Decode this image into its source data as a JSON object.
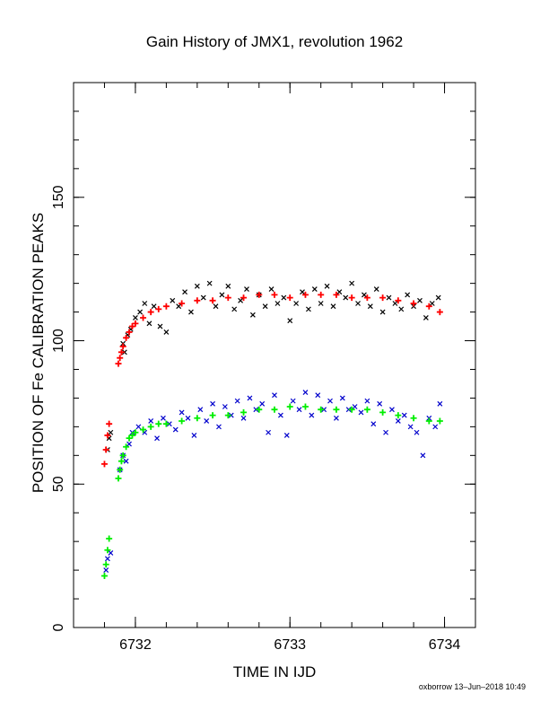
{
  "chart_data": {
    "type": "scatter",
    "title": "Gain History of JMX1, revolution 1962",
    "xlabel": "TIME IN IJD",
    "ylabel": "POSITION OF Fe CALIBRATION PEAKS",
    "xlim": [
      6731.6,
      6734.2
    ],
    "ylim": [
      0,
      190
    ],
    "x_ticks": [
      6732,
      6733,
      6734
    ],
    "x_tick_labels": [
      "6732",
      "6733",
      "6734"
    ],
    "y_ticks": [
      0,
      50,
      100,
      150
    ],
    "y_tick_labels": [
      "0",
      "50",
      "100",
      "150"
    ],
    "grid": false,
    "footer": "oxborrow 13–Jun–2018 10:49",
    "series": [
      {
        "role": "upper-peak measurements",
        "marker": "x",
        "color": "#000000",
        "x": [
          6731.82,
          6731.83,
          6731.84,
          6731.92,
          6731.93,
          6731.95,
          6731.97,
          6732.0,
          6732.03,
          6732.06,
          6732.09,
          6732.12,
          6732.16,
          6732.2,
          6732.24,
          6732.28,
          6732.32,
          6732.36,
          6732.4,
          6732.44,
          6732.48,
          6732.52,
          6732.56,
          6732.6,
          6732.64,
          6732.68,
          6732.72,
          6732.76,
          6732.8,
          6732.84,
          6732.88,
          6732.92,
          6732.96,
          6733.0,
          6733.04,
          6733.08,
          6733.12,
          6733.16,
          6733.2,
          6733.24,
          6733.28,
          6733.32,
          6733.36,
          6733.4,
          6733.44,
          6733.48,
          6733.52,
          6733.56,
          6733.6,
          6733.64,
          6733.68,
          6733.72,
          6733.76,
          6733.8,
          6733.84,
          6733.88,
          6733.92,
          6733.96
        ],
        "y": [
          62,
          66,
          68,
          99,
          96,
          102,
          104,
          108,
          110,
          113,
          106,
          112,
          105,
          103,
          114,
          112,
          117,
          110,
          119,
          115,
          120,
          112,
          116,
          119,
          111,
          114,
          118,
          109,
          116,
          112,
          118,
          113,
          115,
          107,
          113,
          117,
          111,
          118,
          113,
          119,
          112,
          117,
          115,
          120,
          113,
          116,
          112,
          118,
          110,
          115,
          113,
          111,
          116,
          112,
          114,
          108,
          113,
          115
        ]
      },
      {
        "role": "upper-peak fit",
        "marker": "+",
        "color": "#ff0000",
        "x": [
          6731.8,
          6731.81,
          6731.82,
          6731.83,
          6731.89,
          6731.9,
          6731.91,
          6731.92,
          6731.94,
          6731.96,
          6731.98,
          6732.0,
          6732.05,
          6732.1,
          6732.15,
          6732.2,
          6732.3,
          6732.4,
          6732.5,
          6732.6,
          6732.7,
          6732.8,
          6732.9,
          6733.0,
          6733.1,
          6733.2,
          6733.3,
          6733.4,
          6733.5,
          6733.6,
          6733.7,
          6733.8,
          6733.9,
          6733.97
        ],
        "y": [
          57,
          62,
          67,
          71,
          92,
          94,
          96,
          98,
          101,
          103,
          105,
          106,
          108,
          110,
          111,
          112,
          113,
          114,
          114,
          115,
          115,
          116,
          116,
          115,
          116,
          116,
          116,
          115,
          115,
          115,
          114,
          113,
          112,
          110
        ]
      },
      {
        "role": "lower-peak measurements",
        "marker": "x",
        "color": "#0000cc",
        "x": [
          6731.81,
          6731.82,
          6731.84,
          6731.9,
          6731.92,
          6731.94,
          6731.96,
          6731.98,
          6732.02,
          6732.06,
          6732.1,
          6732.14,
          6732.18,
          6732.22,
          6732.26,
          6732.3,
          6732.34,
          6732.38,
          6732.42,
          6732.46,
          6732.5,
          6732.54,
          6732.58,
          6732.62,
          6732.66,
          6732.7,
          6732.74,
          6732.78,
          6732.82,
          6732.86,
          6732.9,
          6732.94,
          6732.98,
          6733.02,
          6733.06,
          6733.1,
          6733.14,
          6733.18,
          6733.22,
          6733.26,
          6733.3,
          6733.34,
          6733.38,
          6733.42,
          6733.46,
          6733.5,
          6733.54,
          6733.58,
          6733.62,
          6733.66,
          6733.7,
          6733.74,
          6733.78,
          6733.82,
          6733.86,
          6733.9,
          6733.94,
          6733.97
        ],
        "y": [
          20,
          24,
          26,
          55,
          60,
          58,
          64,
          68,
          70,
          68,
          72,
          66,
          73,
          71,
          69,
          75,
          73,
          67,
          76,
          72,
          78,
          70,
          77,
          74,
          79,
          73,
          80,
          76,
          78,
          68,
          81,
          74,
          67,
          79,
          76,
          82,
          74,
          81,
          76,
          79,
          73,
          80,
          76,
          77,
          75,
          79,
          71,
          78,
          68,
          76,
          72,
          74,
          70,
          68,
          60,
          73,
          70,
          78
        ]
      },
      {
        "role": "lower-peak fit",
        "marker": "+",
        "color": "#00ee00",
        "x": [
          6731.8,
          6731.81,
          6731.82,
          6731.83,
          6731.89,
          6731.9,
          6731.91,
          6731.92,
          6731.94,
          6731.96,
          6731.98,
          6732.0,
          6732.05,
          6732.1,
          6732.15,
          6732.2,
          6732.3,
          6732.4,
          6732.5,
          6732.6,
          6732.7,
          6732.8,
          6732.9,
          6733.0,
          6733.1,
          6733.2,
          6733.3,
          6733.4,
          6733.5,
          6733.6,
          6733.7,
          6733.8,
          6733.9,
          6733.97
        ],
        "y": [
          18,
          22,
          27,
          31,
          52,
          55,
          58,
          60,
          63,
          66,
          67,
          68,
          69,
          70,
          71,
          71,
          72,
          73,
          74,
          74,
          75,
          76,
          76,
          77,
          77,
          76,
          76,
          76,
          76,
          75,
          74,
          73,
          72,
          72
        ]
      }
    ]
  }
}
